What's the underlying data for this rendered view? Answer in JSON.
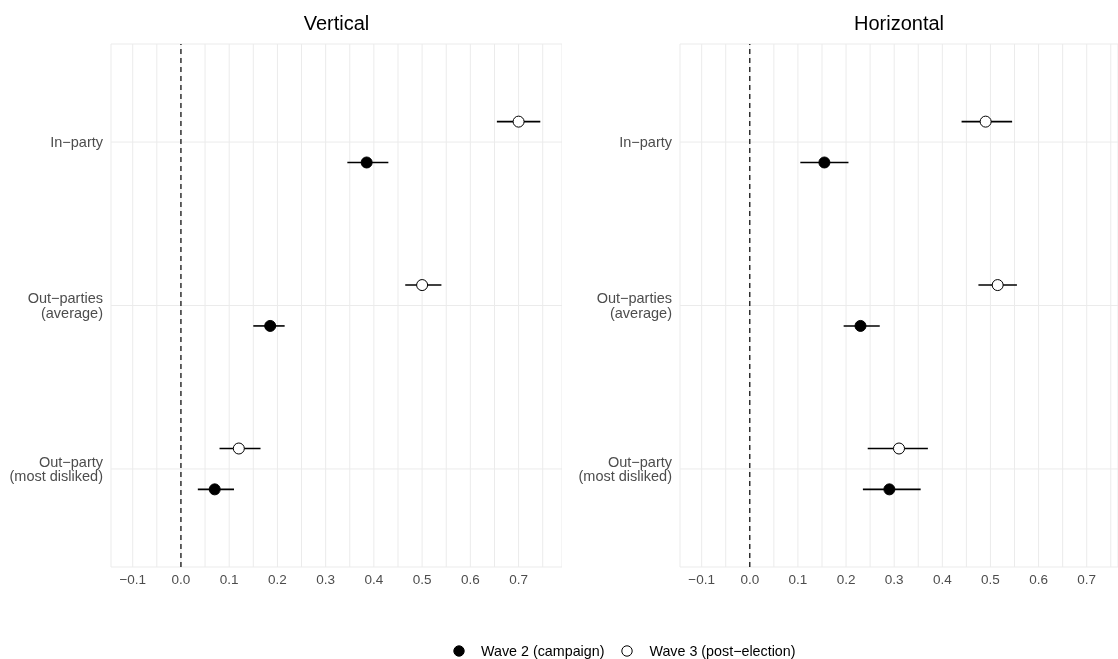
{
  "chart_data": [
    {
      "type": "scatter",
      "title": "Vertical",
      "orientation": "horizontal",
      "categories": [
        "In−party",
        "Out−parties\n(average)",
        "Out−party\n(most disliked)"
      ],
      "series": [
        {
          "name": "Wave 2 (campaign)",
          "color": "#000000",
          "values": [
            0.385,
            0.185,
            0.07
          ],
          "errors": [
            [
              0.345,
              0.43
            ],
            [
              0.15,
              0.215
            ],
            [
              0.035,
              0.11
            ]
          ]
        },
        {
          "name": "Wave 3 (post−election)",
          "color": "#ffffff",
          "values": [
            0.7,
            0.5,
            0.12
          ],
          "errors": [
            [
              0.655,
              0.745
            ],
            [
              0.465,
              0.54
            ],
            [
              0.08,
              0.165
            ]
          ]
        }
      ],
      "xlim": [
        -0.145,
        0.79
      ],
      "xticks": [
        {
          "value": -0.1,
          "label": "−0.1"
        },
        {
          "value": -0.05,
          "label": null
        },
        {
          "value": 0,
          "label": "0.0"
        },
        {
          "value": 0.05,
          "label": null
        },
        0.1,
        {
          "value": 0.15,
          "label": null
        },
        0.2,
        {
          "value": 0.25,
          "label": null
        },
        0.3,
        {
          "value": 0.35,
          "label": null
        },
        0.4,
        {
          "value": 0.45,
          "label": null
        },
        0.5,
        {
          "value": 0.55,
          "label": null
        },
        0.6,
        {
          "value": 0.65,
          "label": null
        },
        0.7,
        {
          "value": 0.75,
          "label": null
        }
      ],
      "ref_lines": [
        {
          "axis": "x",
          "value": 0,
          "color": "#000000",
          "line_style": "dashed"
        }
      ],
      "grid": true,
      "marker": "circle",
      "legend": "bottom"
    },
    {
      "type": "scatter",
      "title": "Horizontal",
      "orientation": "horizontal",
      "categories": [
        "In−party",
        "Out−parties\n(average)",
        "Out−party\n(most disliked)"
      ],
      "series": [
        {
          "color": "#000000",
          "values": [
            0.155,
            0.23,
            0.29
          ],
          "errors": [
            [
              0.105,
              0.205
            ],
            [
              0.195,
              0.27
            ],
            [
              0.235,
              0.355
            ]
          ]
        },
        {
          "color": "#ffffff",
          "values": [
            0.49,
            0.515,
            0.31
          ],
          "errors": [
            [
              0.44,
              0.545
            ],
            [
              0.475,
              0.555
            ],
            [
              0.245,
              0.37
            ]
          ]
        }
      ],
      "xlim": [
        -0.145,
        0.765
      ],
      "xticks": [
        {
          "value": -0.1,
          "label": "−0.1"
        },
        {
          "value": -0.05,
          "label": null
        },
        {
          "value": 0,
          "label": "0.0"
        },
        {
          "value": 0.05,
          "label": null
        },
        0.1,
        {
          "value": 0.15,
          "label": null
        },
        0.2,
        {
          "value": 0.25,
          "label": null
        },
        0.3,
        {
          "value": 0.35,
          "label": null
        },
        0.4,
        {
          "value": 0.45,
          "label": null
        },
        0.5,
        {
          "value": 0.55,
          "label": null
        },
        0.6,
        {
          "value": 0.65,
          "label": null
        },
        0.7,
        {
          "value": 0.75,
          "label": null
        }
      ],
      "ref_lines": [
        {
          "axis": "x",
          "value": 0,
          "color": "#000000",
          "line_style": "dashed"
        }
      ],
      "grid": true,
      "marker": "circle"
    }
  ]
}
